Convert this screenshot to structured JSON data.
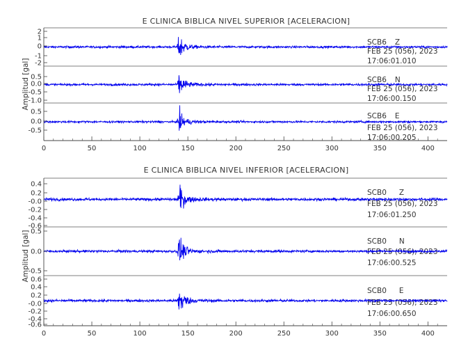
{
  "chart_data": [
    {
      "type": "line",
      "title": "E CLINICA BIBLICA NIVEL SUPERIOR [ACELERACION]",
      "ylabel": "Amplitud [gal]",
      "xlabel": "",
      "xlim": [
        0,
        420
      ],
      "x_ticks": [
        "0",
        "50",
        "100",
        "150",
        "200",
        "250",
        "300",
        "350",
        "400"
      ],
      "line_color": "#0000ee",
      "grid": false,
      "panels": [
        {
          "name": "SCB6 Z",
          "station": "SCB6",
          "component": "Z",
          "date": "FEB 25 (056), 2023",
          "time": "17:06:01.010",
          "ylim": [
            -2.3,
            2.3
          ],
          "y_ticks": [
            "2",
            "1",
            "0",
            "-1",
            "-2"
          ],
          "event_onset_s": 139,
          "peak_amplitude": 2.2,
          "noise_amplitude": 0.12
        },
        {
          "name": "SCB6 N",
          "station": "SCB6",
          "component": "N",
          "date": "FEB 25 (056), 2023",
          "time": "17:06:00.150",
          "ylim": [
            -1.1,
            1.1
          ],
          "y_ticks": [
            "0.5",
            "0.0",
            "-0.5",
            "-1.0"
          ],
          "event_onset_s": 139,
          "peak_amplitude": 1.0,
          "noise_amplitude": 0.06
        },
        {
          "name": "SCB6 E",
          "station": "SCB6",
          "component": "E",
          "date": "FEB 25 (056), 2023",
          "time": "17:06:00.205",
          "ylim": [
            -1.0,
            1.0
          ],
          "y_ticks": [
            "0.5",
            "0.0",
            "-0.5"
          ],
          "event_onset_s": 139,
          "peak_amplitude": 0.85,
          "noise_amplitude": 0.05
        }
      ]
    },
    {
      "type": "line",
      "title": "E CLINICA BIBLICA NIVEL INFERIOR [ACELERACION]",
      "ylabel": "Amplitud [gal]",
      "xlabel": "",
      "xlim": [
        0,
        420
      ],
      "x_ticks": [
        "0",
        "50",
        "100",
        "150",
        "200",
        "250",
        "300",
        "350",
        "400"
      ],
      "line_color": "#0000ee",
      "grid": false,
      "panels": [
        {
          "name": "SCB0 Z",
          "station": "SCB0",
          "component": "Z",
          "date": "FEB 25 (056), 2023",
          "time": "17:06:01.250",
          "ylim": [
            -0.65,
            0.5
          ],
          "y_ticks": [
            "0.4",
            "0.2",
            "-0.0",
            "-0.2",
            "-0.4",
            "-0.6"
          ],
          "event_onset_s": 139,
          "peak_amplitude": 0.48,
          "noise_amplitude": 0.03
        },
        {
          "name": "SCB0 N",
          "station": "SCB0",
          "component": "N",
          "date": "FEB 25 (056), 2023",
          "time": "17:06:00.525",
          "ylim": [
            -0.65,
            0.65
          ],
          "y_ticks": [
            "0.5",
            "0.0",
            "-0.5"
          ],
          "event_onset_s": 139,
          "peak_amplitude": 0.55,
          "noise_amplitude": 0.03
        },
        {
          "name": "SCB0 E",
          "station": "SCB0",
          "component": "E",
          "date": "FEB 25 (056), 2023",
          "time": "17:06:00.650",
          "ylim": [
            -0.65,
            0.65
          ],
          "y_ticks": [
            "0.6",
            "0.4",
            "0.2",
            "-0.0",
            "-0.2",
            "-0.4",
            "-0.6"
          ],
          "event_onset_s": 139,
          "peak_amplitude": 0.6,
          "noise_amplitude": 0.03
        }
      ]
    }
  ]
}
